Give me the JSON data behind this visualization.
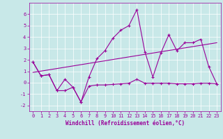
{
  "xlabel": "Windchill (Refroidissement éolien,°C)",
  "bg_color": "#c8e8e8",
  "line_color": "#990099",
  "xlim": [
    -0.5,
    23.5
  ],
  "ylim": [
    -2.5,
    7.0
  ],
  "xticks": [
    0,
    1,
    2,
    3,
    4,
    5,
    6,
    7,
    8,
    9,
    10,
    11,
    12,
    13,
    14,
    15,
    16,
    17,
    18,
    19,
    20,
    21,
    22,
    23
  ],
  "yticks": [
    -2,
    -1,
    0,
    1,
    2,
    3,
    4,
    5,
    6
  ],
  "upper_x": [
    0,
    1,
    2,
    3,
    4,
    5,
    6,
    7,
    8,
    9,
    10,
    11,
    12,
    13,
    14,
    15,
    16,
    17,
    18,
    19,
    20,
    21,
    22,
    23
  ],
  "upper_y": [
    1.8,
    0.6,
    0.7,
    -0.7,
    0.3,
    -0.4,
    -1.7,
    0.5,
    2.1,
    2.8,
    3.9,
    4.6,
    5.0,
    6.4,
    2.7,
    0.5,
    2.6,
    4.2,
    2.8,
    3.5,
    3.5,
    3.8,
    1.4,
    -0.1
  ],
  "lower_x": [
    0,
    1,
    2,
    3,
    4,
    5,
    6,
    7,
    8,
    9,
    10,
    11,
    12,
    13,
    14,
    15,
    16,
    17,
    18,
    19,
    20,
    21,
    22,
    23
  ],
  "lower_y": [
    1.8,
    0.6,
    0.7,
    -0.7,
    -0.7,
    -0.4,
    -1.7,
    -0.3,
    -0.2,
    -0.2,
    -0.15,
    -0.1,
    -0.05,
    0.3,
    -0.05,
    -0.05,
    -0.05,
    -0.05,
    -0.1,
    -0.1,
    -0.1,
    -0.05,
    -0.05,
    -0.1
  ],
  "trend_x": [
    0,
    23
  ],
  "trend_y": [
    0.9,
    3.5
  ],
  "grid_color": "#ffffff",
  "xlabel_fontsize": 5.5,
  "tick_fontsize": 5,
  "linewidth": 0.8
}
